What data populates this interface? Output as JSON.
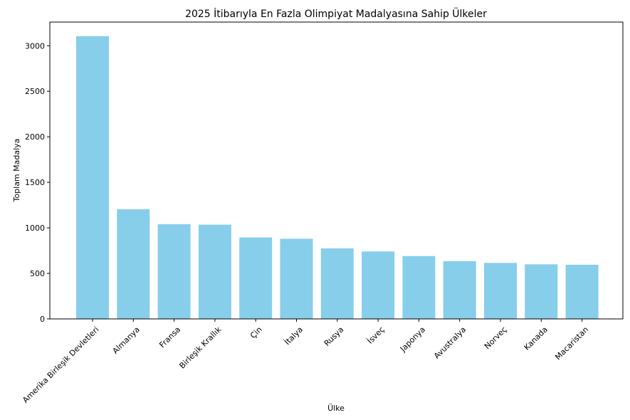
{
  "chart_data": {
    "type": "bar",
    "title": "2025 İtibarıyla En Fazla Olimpiyat Madalyasına Sahip Ülkeler",
    "xlabel": "Ülke",
    "ylabel": "Toplam Madalya",
    "categories": [
      "Amerika Birleşik Devletleri",
      "Almanya",
      "Fransa",
      "Birleşik Krallık",
      "Çin",
      "İtalya",
      "Rusya",
      "İsveç",
      "Japonya",
      "Avustralya",
      "Norveç",
      "Kanada",
      "Macaristan"
    ],
    "values": [
      3105,
      1205,
      1040,
      1035,
      895,
      880,
      775,
      740,
      690,
      635,
      615,
      600,
      595
    ],
    "ylim": [
      0,
      3260
    ],
    "yticks": [
      0,
      500,
      1000,
      1500,
      2000,
      2500,
      3000
    ],
    "bar_color": "#87ceeb",
    "grid": false
  }
}
